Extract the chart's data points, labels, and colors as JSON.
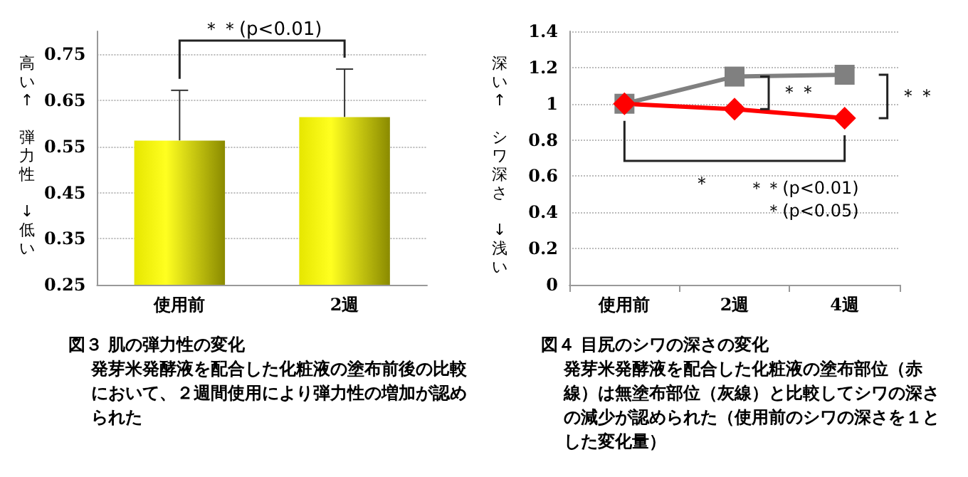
{
  "chart_data": [
    {
      "type": "bar",
      "title": "図３ 肌の弾力性の変化",
      "subtitle": "発芽米発酵液を配合した化粧液の塗布前後の比較において、２週間使用により弾力性の増加が認められた",
      "ylabel": "高い↑　弾力性　↓低い",
      "categories": [
        "使用前",
        "2週"
      ],
      "series": [
        {
          "color": "#e6e600",
          "values": [
            0.563,
            0.614
          ],
          "errors": [
            [
              0.563,
              0.672
            ],
            [
              0.614,
              0.718
            ]
          ]
        }
      ],
      "ylim": [
        0.25,
        0.8
      ],
      "yticks": [
        0.25,
        0.35,
        0.45,
        0.55,
        0.65,
        0.75
      ],
      "grid": "y",
      "annotations": [
        "＊＊(p<0.01)"
      ]
    },
    {
      "type": "line",
      "title": "図４ 目尻のシワの深さの変化",
      "subtitle": "発芽米発酵液を配合した化粧液の塗布部位（赤線）は無塗布部位（灰線）と比較してシワの深さの減少が認められた（使用前のシワの深さを１とした変化量）",
      "ylabel": "深い↑　シワ深さ　↓浅い",
      "categories": [
        "使用前",
        "2週",
        "4週"
      ],
      "series": [
        {
          "color": "#808080",
          "values": [
            1,
            1.15,
            1.16
          ],
          "marker": "square"
        },
        {
          "color": "#ff0000",
          "values": [
            1,
            0.97,
            0.92
          ],
          "marker": "diamond"
        }
      ],
      "ylim": [
        0,
        1.4
      ],
      "yticks": [
        0,
        0.2,
        0.4,
        0.6,
        0.8,
        1,
        1.2,
        1.4
      ],
      "grid": "y",
      "line_style": "solid",
      "annotations": [
        "＊＊",
        "＊＊",
        "＊",
        "＊＊(p<0.01)",
        "＊(p<0.05)"
      ]
    }
  ]
}
